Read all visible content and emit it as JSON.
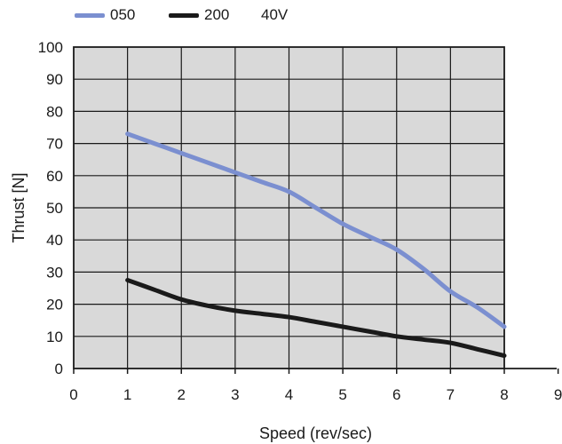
{
  "chart_data": {
    "type": "line",
    "title": "",
    "xlabel": "Speed (rev/sec)",
    "ylabel": "Thrust [N]",
    "xlim": [
      0,
      9
    ],
    "ylim": [
      0,
      100
    ],
    "x_ticks": [
      "0",
      "1",
      "2",
      "3",
      "4",
      "5",
      "6",
      "7",
      "8",
      "9"
    ],
    "y_ticks": [
      "0",
      "10",
      "20",
      "30",
      "40",
      "50",
      "60",
      "70",
      "80",
      "90",
      "100"
    ],
    "grid": true,
    "legend_position": "top-left",
    "legend_note": "40V",
    "plot_background": "#d9d9d9",
    "series": [
      {
        "name": "050",
        "color": "#7b8fd0",
        "x": [
          1,
          1.5,
          2,
          2.5,
          3,
          3.5,
          4,
          4.5,
          5,
          5.5,
          6,
          6.5,
          7,
          7.5,
          8
        ],
        "y": [
          73,
          70,
          67,
          64,
          61,
          58,
          55,
          50,
          45,
          41,
          37,
          31,
          24,
          19,
          13
        ]
      },
      {
        "name": "200",
        "color": "#1a1a1a",
        "x": [
          1,
          1.5,
          2,
          2.5,
          3,
          3.5,
          4,
          4.5,
          5,
          5.5,
          6,
          6.5,
          7,
          7.5,
          8
        ],
        "y": [
          27.5,
          24.5,
          21.5,
          19.5,
          18,
          17,
          16,
          14.5,
          13,
          11.5,
          10,
          9,
          8,
          6,
          4
        ]
      }
    ]
  }
}
